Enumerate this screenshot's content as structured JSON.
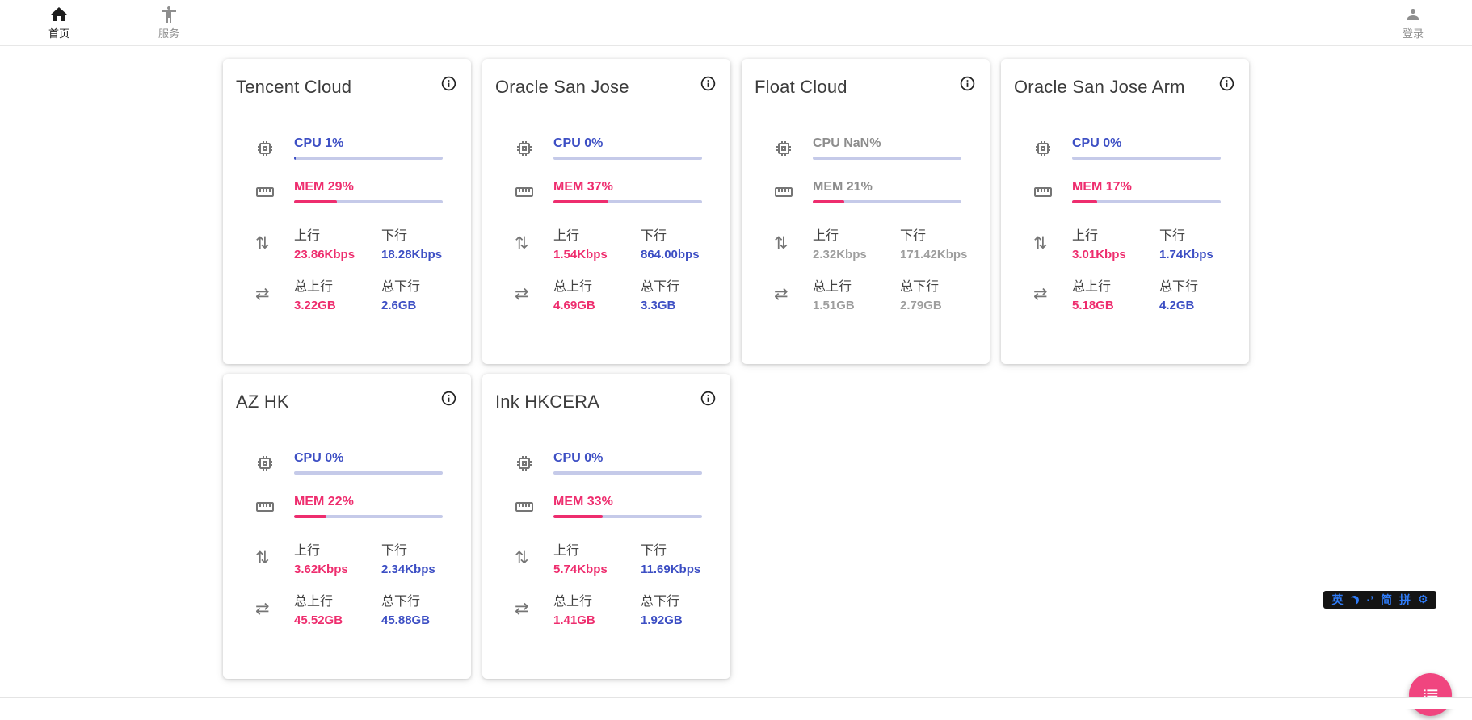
{
  "navbar": {
    "home_label": "首页",
    "services_label": "服务",
    "login_label": "登录"
  },
  "labels": {
    "up": "上行",
    "down": "下行",
    "total_up": "总上行",
    "total_down": "总下行"
  },
  "cards": [
    {
      "name": "Tencent Cloud",
      "cpu_text": "CPU 1%",
      "cpu_pct": 1,
      "mem_text": "MEM 29%",
      "mem_pct": 29,
      "up": "23.86Kbps",
      "down": "18.28Kbps",
      "total_up": "3.22GB",
      "total_down": "2.6GB",
      "muted": false
    },
    {
      "name": "Oracle San Jose",
      "cpu_text": "CPU 0%",
      "cpu_pct": 0,
      "mem_text": "MEM 37%",
      "mem_pct": 37,
      "up": "1.54Kbps",
      "down": "864.00bps",
      "total_up": "4.69GB",
      "total_down": "3.3GB",
      "muted": false
    },
    {
      "name": "Float Cloud",
      "cpu_text": "CPU NaN%",
      "cpu_pct": 0,
      "mem_text": "MEM 21%",
      "mem_pct": 21,
      "up": "2.32Kbps",
      "down": "171.42Kbps",
      "total_up": "1.51GB",
      "total_down": "2.79GB",
      "muted": true
    },
    {
      "name": "Oracle San Jose Arm",
      "cpu_text": "CPU 0%",
      "cpu_pct": 0,
      "mem_text": "MEM 17%",
      "mem_pct": 17,
      "up": "3.01Kbps",
      "down": "1.74Kbps",
      "total_up": "5.18GB",
      "total_down": "4.2GB",
      "muted": false
    },
    {
      "name": "AZ HK",
      "cpu_text": "CPU 0%",
      "cpu_pct": 0,
      "mem_text": "MEM 22%",
      "mem_pct": 22,
      "up": "3.62Kbps",
      "down": "2.34Kbps",
      "total_up": "45.52GB",
      "total_down": "45.88GB",
      "muted": false
    },
    {
      "name": "Ink HKCERA",
      "cpu_text": "CPU 0%",
      "cpu_pct": 0,
      "mem_text": "MEM 33%",
      "mem_pct": 33,
      "up": "5.74Kbps",
      "down": "11.69Kbps",
      "total_up": "1.41GB",
      "total_down": "1.92GB",
      "muted": false
    }
  ],
  "ime_bar": {
    "lang": "英",
    "punct": "·’",
    "simplified": "简",
    "pinyin": "拼",
    "gear_glyph": "⚙"
  },
  "icons": {
    "traffic_vertical_glyph": "⇅",
    "traffic_horizontal_glyph": "⇄"
  },
  "colors": {
    "accent_pink": "#ee2d6e",
    "accent_indigo": "#3d4fc4",
    "bar_track": "#c5cae9",
    "muted_value": "#9e9e9e",
    "fab_pink": "#f0457f",
    "ime_blue": "#2f7bf6"
  }
}
